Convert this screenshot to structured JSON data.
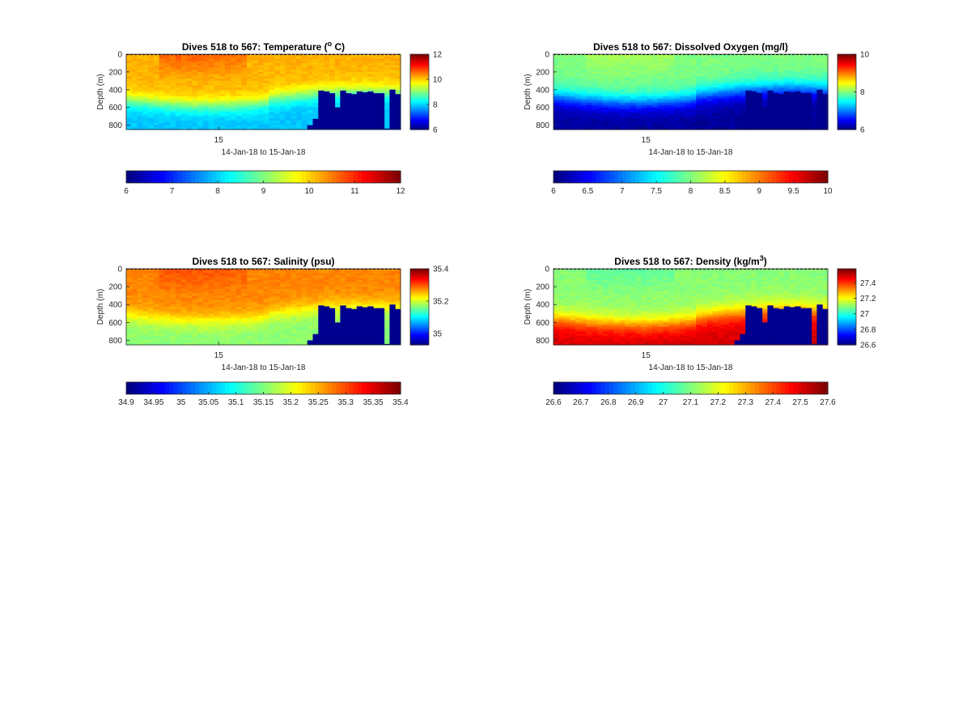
{
  "figure": {
    "background": "#ffffff",
    "colormap": "jet"
  },
  "chart_data": [
    {
      "type": "heatmap",
      "variable": "temperature",
      "title": {
        "main": "Dives 518 to 567: Temperature (",
        "sup": "o",
        "tail": " C)"
      },
      "xlabel": "14-Jan-18 to 15-Jan-18",
      "ylabel": "Depth (m)",
      "x_ticks": [
        "15"
      ],
      "x_tick_frac": 0.337,
      "y_ticks": [
        0,
        200,
        400,
        600,
        800
      ],
      "ylim": [
        0,
        850
      ],
      "y_reversed": true,
      "clim": [
        6,
        12
      ],
      "colorbar_ticks": [
        "6",
        "8",
        "10",
        "12"
      ],
      "horizontal_colorbar_ticks": [
        "6",
        "7",
        "8",
        "9",
        "10",
        "11",
        "12"
      ],
      "dive_count": 50,
      "profile": {
        "surface": 10.2,
        "bottom": 7.9,
        "transition_depth": 520,
        "gradient_width": 220,
        "warm_patch": 0.6
      },
      "no_data_fill": "#00008f",
      "no_data_bottom_depth_m": [
        850,
        850,
        850,
        850,
        850,
        850,
        850,
        850,
        850,
        850,
        850,
        850,
        850,
        850,
        850,
        850,
        850,
        850,
        850,
        850,
        850,
        850,
        850,
        850,
        850,
        850,
        850,
        850,
        850,
        850,
        850,
        850,
        850,
        850,
        850,
        850,
        850,
        850,
        850,
        850,
        850,
        850,
        850,
        850,
        850,
        850,
        850,
        850,
        850,
        850
      ]
    },
    {
      "type": "heatmap",
      "variable": "dissolved_oxygen",
      "title": {
        "main": "Dives 518 to 567: Dissolved Oxygen (mg/l)",
        "sup": "",
        "tail": ""
      },
      "xlabel": "14-Jan-18 to 15-Jan-18",
      "ylabel": "Depth (m)",
      "x_ticks": [
        "15"
      ],
      "x_tick_frac": 0.337,
      "y_ticks": [
        0,
        200,
        400,
        600,
        800
      ],
      "ylim": [
        0,
        850
      ],
      "y_reversed": true,
      "clim": [
        6,
        10
      ],
      "colorbar_ticks": [
        "6",
        "8",
        "10"
      ],
      "horizontal_colorbar_ticks": [
        "6",
        "6.5",
        "7",
        "7.5",
        "8",
        "8.5",
        "9",
        "9.5",
        "10"
      ],
      "dive_count": 50,
      "profile": {
        "surface": 8.0,
        "bottom": 6.1,
        "transition_depth": 480,
        "gradient_width": 260,
        "warm_patch": 0.2
      },
      "no_data_fill": "#00008f"
    },
    {
      "type": "heatmap",
      "variable": "salinity",
      "title": {
        "main": "Dives 518 to 567: Salinity (psu)",
        "sup": "",
        "tail": ""
      },
      "xlabel": "14-Jan-18 to 15-Jan-18",
      "ylabel": "Depth (m)",
      "x_ticks": [
        "15"
      ],
      "x_tick_frac": 0.337,
      "y_ticks": [
        0,
        200,
        400,
        600,
        800
      ],
      "ylim": [
        0,
        850
      ],
      "y_reversed": true,
      "clim": [
        34.93,
        35.4
      ],
      "colorbar_ticks": [
        "35",
        "35.2",
        "35.4"
      ],
      "horizontal_colorbar_ticks": [
        "34.9",
        "34.95",
        "35",
        "35.05",
        "35.1",
        "35.15",
        "35.2",
        "35.25",
        "35.3",
        "35.35",
        "35.4"
      ],
      "horizontal_clim": [
        34.9,
        35.4
      ],
      "dive_count": 50,
      "profile": {
        "surface": 35.28,
        "bottom": 35.17,
        "transition_depth": 520,
        "gradient_width": 240,
        "warm_patch": 0.03
      },
      "no_data_fill": "#00008f"
    },
    {
      "type": "heatmap",
      "variable": "density",
      "title": {
        "main": "Dives 518 to 567: Density (kg/m",
        "sup": "3",
        "tail": ")"
      },
      "xlabel": "14-Jan-18 to 15-Jan-18",
      "ylabel": "Depth (m)",
      "x_ticks": [
        "15"
      ],
      "x_tick_frac": 0.337,
      "y_ticks": [
        0,
        200,
        400,
        600,
        800
      ],
      "ylim": [
        0,
        850
      ],
      "y_reversed": true,
      "clim": [
        26.6,
        27.58
      ],
      "colorbar_ticks": [
        "26.6",
        "26.8",
        "27",
        "27.2",
        "27.4"
      ],
      "horizontal_colorbar_ticks": [
        "26.6",
        "26.7",
        "26.8",
        "26.9",
        "27",
        "27.1",
        "27.2",
        "27.3",
        "27.4",
        "27.5",
        "27.6"
      ],
      "horizontal_clim": [
        26.6,
        27.6
      ],
      "dive_count": 50,
      "profile": {
        "surface": 27.1,
        "bottom": 27.5,
        "transition_depth": 560,
        "gradient_width": 260,
        "warm_patch": -0.05
      },
      "no_data_fill": "#00008f"
    }
  ],
  "no_data_bottom_profile_m": [
    850,
    850,
    850,
    850,
    850,
    850,
    850,
    850,
    850,
    850,
    850,
    850,
    850,
    850,
    850,
    850,
    850,
    850,
    850,
    850,
    850,
    850,
    850,
    850,
    850,
    850,
    850,
    850,
    850,
    850,
    850,
    850,
    850,
    850,
    850,
    850,
    850,
    850,
    850,
    850,
    850,
    850,
    850,
    850,
    850,
    850,
    850,
    850,
    850,
    850
  ],
  "no_data_top_depth_m": [
    850,
    850,
    850,
    850,
    850,
    850,
    850,
    850,
    850,
    850,
    850,
    850,
    850,
    850,
    850,
    850,
    850,
    850,
    850,
    850,
    850,
    850,
    850,
    850,
    850,
    850,
    850,
    850,
    850,
    850,
    850,
    850,
    850,
    800,
    730,
    410,
    420,
    440,
    600,
    410,
    440,
    450,
    420,
    430,
    420,
    440,
    440,
    840,
    400,
    450
  ]
}
